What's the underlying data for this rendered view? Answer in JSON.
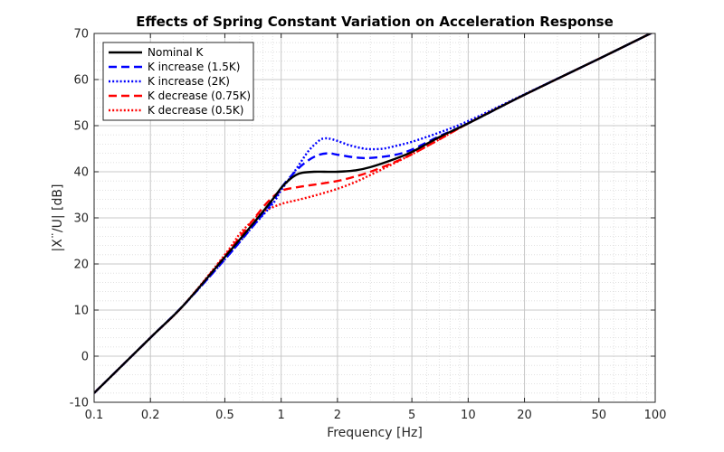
{
  "chart_data": {
    "type": "line",
    "title": "Effects of Spring Constant Variation on Acceleration Response",
    "xlabel": "Frequency [Hz]",
    "ylabel": "|X¨/U| [dB]",
    "xscale": "log",
    "xlim": [
      0.1,
      100
    ],
    "ylim": [
      -10,
      70
    ],
    "xticks": [
      0.1,
      0.2,
      0.5,
      1,
      2,
      5,
      10,
      20,
      50,
      100
    ],
    "xtick_labels": [
      "0.1",
      "0.2",
      "0.5",
      "1",
      "2",
      "5",
      "10",
      "20",
      "50",
      "100"
    ],
    "yticks": [
      -10,
      0,
      10,
      20,
      30,
      40,
      50,
      60,
      70
    ],
    "ytick_labels": [
      "-10",
      "0",
      "10",
      "20",
      "30",
      "40",
      "50",
      "60",
      "70"
    ],
    "grid": true,
    "minor_grid": true,
    "legend_position": "top-left",
    "series": [
      {
        "name": "Nominal K",
        "color": "#000000",
        "style": "solid",
        "x": [
          0.1,
          0.2,
          0.3,
          0.5,
          0.7,
          0.9,
          1.0,
          1.1,
          1.2,
          1.3,
          1.5,
          1.7,
          2.0,
          2.5,
          3.0,
          4.0,
          5.0,
          7.0,
          10,
          20,
          50,
          100
        ],
        "y": [
          -8,
          4,
          11,
          21.5,
          28.5,
          34,
          36.5,
          38.2,
          39.3,
          39.8,
          40,
          40,
          40,
          40.3,
          41,
          42.7,
          44.3,
          47.5,
          50.5,
          56.7,
          64.5,
          70.5
        ]
      },
      {
        "name": "K increase (1.5K)",
        "color": "#0000ff",
        "style": "dashed",
        "x": [
          0.1,
          0.2,
          0.3,
          0.5,
          0.7,
          0.9,
          1.0,
          1.2,
          1.4,
          1.6,
          1.8,
          2.0,
          2.5,
          3.0,
          4.0,
          5.0,
          7.0,
          10,
          20,
          50,
          100
        ],
        "y": [
          -8,
          4,
          11,
          21,
          28,
          33.5,
          36.5,
          40.2,
          42.5,
          43.7,
          44,
          43.7,
          43.1,
          43,
          43.6,
          44.8,
          47.7,
          50.5,
          56.7,
          64.5,
          70.5
        ]
      },
      {
        "name": "K increase (2K)",
        "color": "#0000ff",
        "style": "dotted",
        "x": [
          0.1,
          0.2,
          0.3,
          0.5,
          0.7,
          0.9,
          1.0,
          1.2,
          1.4,
          1.6,
          1.7,
          1.8,
          2.0,
          2.3,
          2.7,
          3.0,
          3.5,
          4.0,
          5.0,
          7.0,
          10,
          20,
          50,
          100
        ],
        "y": [
          -8,
          4,
          11,
          21,
          28,
          33,
          36,
          40.5,
          44.5,
          46.8,
          47.2,
          47.2,
          46.7,
          45.8,
          45.1,
          44.9,
          45,
          45.5,
          46.5,
          48.5,
          51,
          56.8,
          64.5,
          70.5
        ]
      },
      {
        "name": "K decrease (0.75K)",
        "color": "#ff0000",
        "style": "dashed",
        "x": [
          0.1,
          0.2,
          0.3,
          0.5,
          0.7,
          0.85,
          1.0,
          1.2,
          1.5,
          2.0,
          2.5,
          3.0,
          4.0,
          5.0,
          7.0,
          10,
          20,
          50,
          100
        ],
        "y": [
          -8,
          4,
          11,
          21.7,
          29.3,
          33.5,
          35.8,
          36.6,
          37.2,
          38,
          39,
          40,
          42,
          43.8,
          47,
          50.5,
          56.7,
          64.5,
          70.5
        ]
      },
      {
        "name": "K decrease (0.5K)",
        "color": "#ff0000",
        "style": "dotted",
        "x": [
          0.1,
          0.2,
          0.3,
          0.5,
          0.6,
          0.7,
          0.8,
          1.0,
          1.2,
          1.5,
          2.0,
          2.5,
          3.0,
          4.0,
          5.0,
          7.0,
          10,
          20,
          50,
          100
        ],
        "y": [
          -8,
          4,
          11,
          22,
          26.5,
          29.3,
          31.3,
          33,
          33.8,
          34.8,
          36.3,
          37.8,
          39.3,
          41.8,
          43.8,
          47,
          50.5,
          56.7,
          64.5,
          70.5
        ]
      }
    ]
  }
}
